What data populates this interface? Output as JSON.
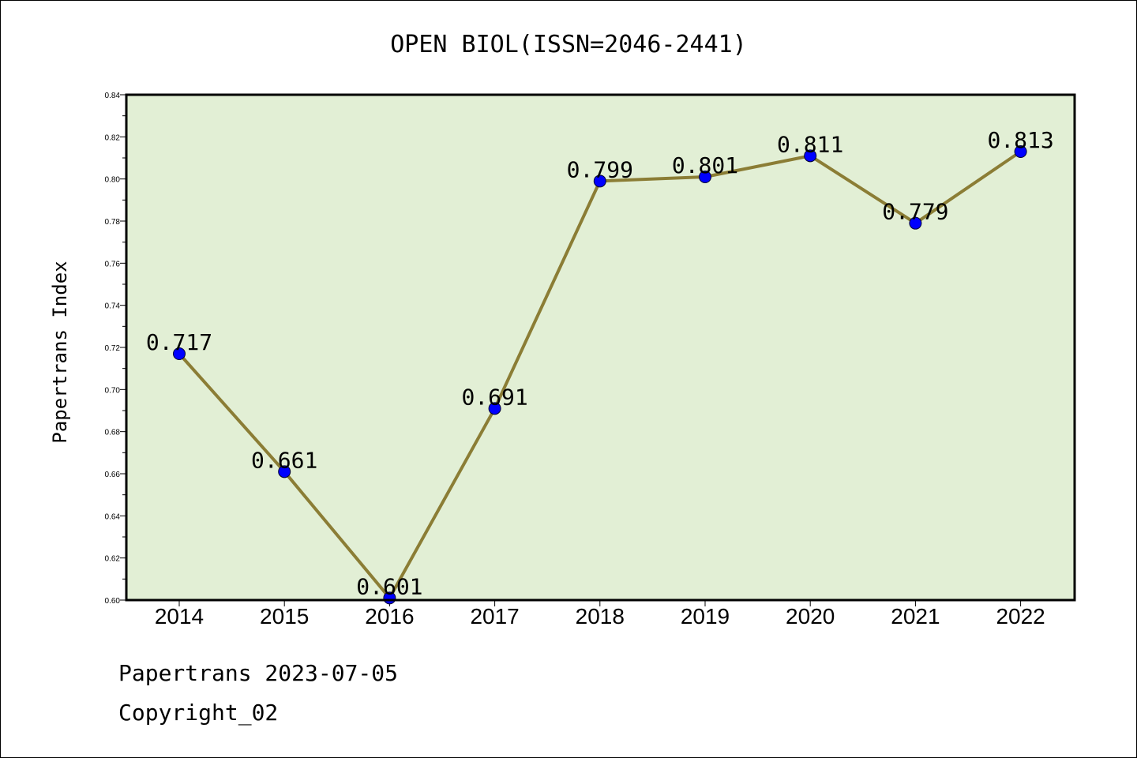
{
  "chart_data": {
    "type": "line",
    "title": "OPEN BIOL(ISSN=2046-2441)",
    "ylabel": "Papertrans Index",
    "xlabel": "",
    "categories": [
      "2014",
      "2015",
      "2016",
      "2017",
      "2018",
      "2019",
      "2020",
      "2021",
      "2022"
    ],
    "values": [
      0.717,
      0.661,
      0.601,
      0.691,
      0.799,
      0.801,
      0.811,
      0.779,
      0.813
    ],
    "data_labels": [
      "0.717",
      "0.661",
      "0.601",
      "0.691",
      "0.799",
      "0.801",
      "0.811",
      "0.779",
      "0.813"
    ],
    "ylim": [
      0.6,
      0.84
    ],
    "yticks": [
      "0.60",
      "0.62",
      "0.64",
      "0.66",
      "0.68",
      "0.70",
      "0.72",
      "0.74",
      "0.76",
      "0.78",
      "0.80",
      "0.82",
      "0.84"
    ],
    "grid": false,
    "colors": {
      "plot_background": "#e2efd5",
      "line": "#8b7d35",
      "marker": "#0000ff"
    }
  },
  "footer": {
    "line1": "Papertrans 2023-07-05",
    "line2": "Copyright_02"
  }
}
